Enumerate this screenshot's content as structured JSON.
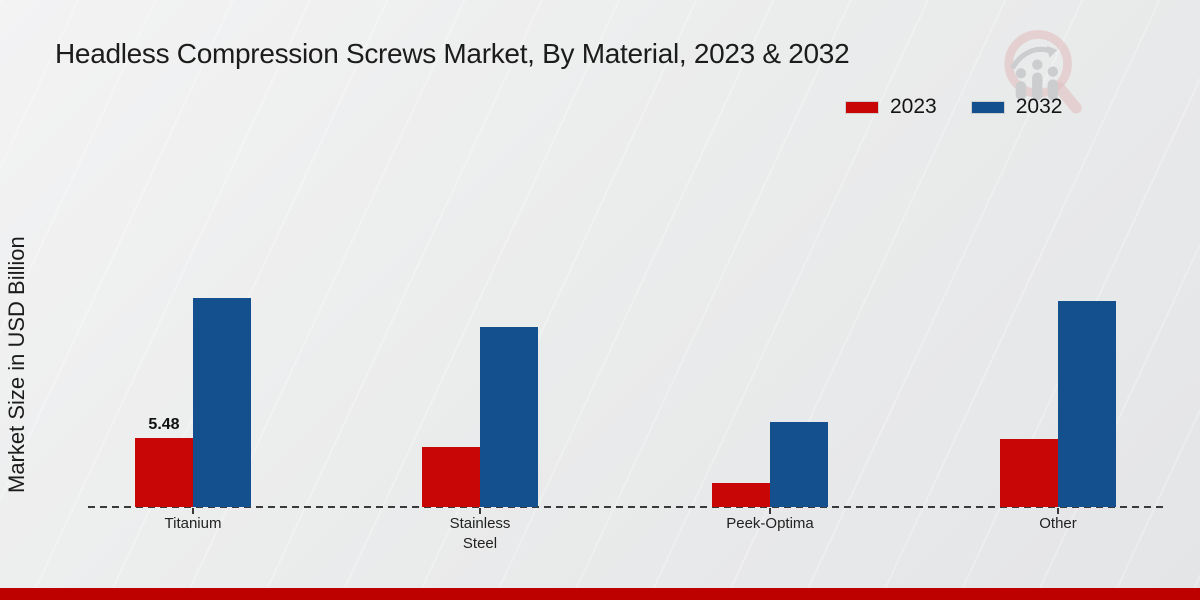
{
  "page": {
    "title": "Headless Compression Screws Market, By Material, 2023 & 2032"
  },
  "chart_data": {
    "type": "bar",
    "title": "Headless Compression Screws Market, By Material, 2023 & 2032",
    "ylabel": "Market Size in USD Billion",
    "unit": "USD Billion",
    "categories": [
      "Titanium",
      "Stainless Steel",
      "Peek-Optima",
      "Other"
    ],
    "series": [
      {
        "name": "2023",
        "color": "#c90606",
        "values": [
          5.48,
          4.8,
          1.9,
          5.4
        ]
      },
      {
        "name": "2032",
        "color": "#15508e",
        "values": [
          16.6,
          14.3,
          6.75,
          16.4
        ]
      }
    ],
    "ylim": [
      0,
      29
    ],
    "grid": false,
    "legend_position": "top-right",
    "baseline_style": "dashed",
    "data_labels": [
      {
        "series_index": 0,
        "category_index": 0,
        "text": "5.48"
      }
    ]
  },
  "watermark": {
    "icon": "magnifier-growth-chart-logo"
  },
  "footer": {
    "bar_color": "#bd0101"
  }
}
